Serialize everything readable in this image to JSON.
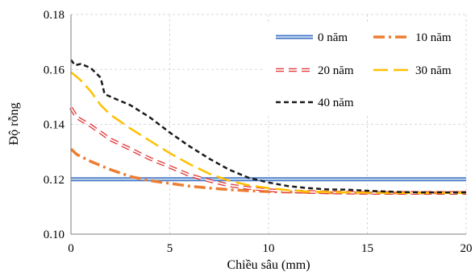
{
  "chart_data": {
    "type": "line",
    "xlabel": "Chiều sâu (mm)",
    "ylabel": "Độ rỗng",
    "xlim": [
      0,
      20
    ],
    "ylim": [
      0.1,
      0.18
    ],
    "x_ticks": [
      0,
      5,
      10,
      15,
      20
    ],
    "y_ticks": [
      0.1,
      0.12,
      0.14,
      0.16,
      0.18
    ],
    "x_tick_labels": [
      "0",
      "5",
      "10",
      "15",
      "20"
    ],
    "y_tick_labels": [
      "0.10",
      "0.12",
      "0.14",
      "0.16",
      "0.18"
    ],
    "grid": true,
    "legend_position": "top-right",
    "series": [
      {
        "name": "0 năm",
        "style": "solid-double",
        "color": "#4472c4",
        "points": [
          [
            0,
            0.12
          ],
          [
            20,
            0.12
          ]
        ]
      },
      {
        "name": "10 năm",
        "style": "dash-dot",
        "color": "#ed7d31",
        "points": [
          [
            0,
            0.131
          ],
          [
            0.3,
            0.129
          ],
          [
            1,
            0.1265
          ],
          [
            2,
            0.1235
          ],
          [
            3,
            0.121
          ],
          [
            4,
            0.1195
          ],
          [
            5,
            0.1185
          ],
          [
            6,
            0.1175
          ],
          [
            7,
            0.1168
          ],
          [
            8,
            0.1162
          ],
          [
            9,
            0.1158
          ],
          [
            10,
            0.1155
          ],
          [
            12,
            0.1152
          ],
          [
            14,
            0.115
          ],
          [
            16,
            0.115
          ],
          [
            18,
            0.115
          ],
          [
            20,
            0.1152
          ]
        ]
      },
      {
        "name": "20 năm",
        "style": "dash-hollow",
        "color": "#e03c3c",
        "points": [
          [
            0,
            0.146
          ],
          [
            0.3,
            0.1425
          ],
          [
            1,
            0.1395
          ],
          [
            1.5,
            0.137
          ],
          [
            2,
            0.1345
          ],
          [
            3,
            0.131
          ],
          [
            4,
            0.1275
          ],
          [
            5,
            0.1245
          ],
          [
            6,
            0.1215
          ],
          [
            7,
            0.1195
          ],
          [
            8,
            0.1178
          ],
          [
            9,
            0.1168
          ],
          [
            10,
            0.116
          ],
          [
            11,
            0.1156
          ],
          [
            13,
            0.1152
          ],
          [
            15,
            0.115
          ],
          [
            17,
            0.115
          ],
          [
            20,
            0.115
          ]
        ]
      },
      {
        "name": "30 năm",
        "style": "long-dash",
        "color": "#ffc000",
        "points": [
          [
            0,
            0.159
          ],
          [
            0.5,
            0.156
          ],
          [
            1,
            0.152
          ],
          [
            1.5,
            0.147
          ],
          [
            2,
            0.1435
          ],
          [
            3,
            0.1385
          ],
          [
            4,
            0.134
          ],
          [
            5,
            0.1295
          ],
          [
            6,
            0.1255
          ],
          [
            7,
            0.122
          ],
          [
            8,
            0.1195
          ],
          [
            9,
            0.1178
          ],
          [
            10,
            0.1168
          ],
          [
            11,
            0.116
          ],
          [
            12,
            0.1155
          ],
          [
            14,
            0.1152
          ],
          [
            16,
            0.115
          ],
          [
            20,
            0.115
          ]
        ]
      },
      {
        "name": "40 năm",
        "style": "short-dash",
        "color": "#1a1a1a",
        "points": [
          [
            0,
            0.1635
          ],
          [
            0.2,
            0.1615
          ],
          [
            0.5,
            0.162
          ],
          [
            1,
            0.1605
          ],
          [
            1.5,
            0.157
          ],
          [
            1.7,
            0.151
          ],
          [
            2.5,
            0.1485
          ],
          [
            3,
            0.147
          ],
          [
            4,
            0.1425
          ],
          [
            5,
            0.137
          ],
          [
            6,
            0.132
          ],
          [
            7,
            0.1275
          ],
          [
            8,
            0.1235
          ],
          [
            9,
            0.1205
          ],
          [
            10,
            0.1188
          ],
          [
            11,
            0.1175
          ],
          [
            12,
            0.1168
          ],
          [
            13,
            0.1163
          ],
          [
            14,
            0.1162
          ],
          [
            15,
            0.1158
          ],
          [
            16,
            0.1155
          ],
          [
            17,
            0.1153
          ],
          [
            18,
            0.1152
          ],
          [
            20,
            0.1152
          ]
        ]
      }
    ]
  }
}
